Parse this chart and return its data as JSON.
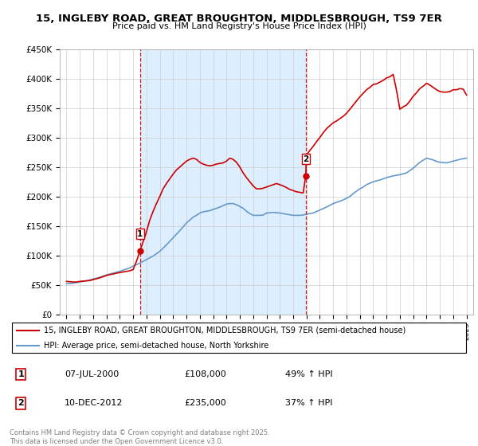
{
  "title": "15, INGLEBY ROAD, GREAT BROUGHTON, MIDDLESBROUGH, TS9 7ER",
  "subtitle": "Price paid vs. HM Land Registry's House Price Index (HPI)",
  "legend_line1": "15, INGLEBY ROAD, GREAT BROUGHTON, MIDDLESBROUGH, TS9 7ER (semi-detached house)",
  "legend_line2": "HPI: Average price, semi-detached house, North Yorkshire",
  "footnote": "Contains HM Land Registry data © Crown copyright and database right 2025.\nThis data is licensed under the Open Government Licence v3.0.",
  "transaction1_date": "07-JUL-2000",
  "transaction1_price": "£108,000",
  "transaction1_hpi": "49% ↑ HPI",
  "transaction2_date": "10-DEC-2012",
  "transaction2_price": "£235,000",
  "transaction2_hpi": "37% ↑ HPI",
  "marker1_x": 2000.52,
  "marker1_y": 108000,
  "marker2_x": 2012.94,
  "marker2_y": 235000,
  "vline1_x": 2000.52,
  "vline2_x": 2012.94,
  "ylim": [
    0,
    450000
  ],
  "xlim": [
    1994.5,
    2025.5
  ],
  "red_color": "#cc0000",
  "blue_color": "#6699cc",
  "shade_color": "#ddeeff",
  "vline_color": "#cc0000",
  "hpi_years": [
    1995,
    1995.25,
    1995.5,
    1995.75,
    1996,
    1996.25,
    1996.5,
    1996.75,
    1997,
    1997.25,
    1997.5,
    1997.75,
    1998,
    1998.25,
    1998.5,
    1998.75,
    1999,
    1999.25,
    1999.5,
    1999.75,
    2000,
    2000.25,
    2000.5,
    2000.75,
    2001,
    2001.25,
    2001.5,
    2001.75,
    2002,
    2002.25,
    2002.5,
    2002.75,
    2003,
    2003.25,
    2003.5,
    2003.75,
    2004,
    2004.25,
    2004.5,
    2004.75,
    2005,
    2005.25,
    2005.5,
    2005.75,
    2006,
    2006.25,
    2006.5,
    2006.75,
    2007,
    2007.25,
    2007.5,
    2007.75,
    2008,
    2008.25,
    2008.5,
    2008.75,
    2009,
    2009.25,
    2009.5,
    2009.75,
    2010,
    2010.25,
    2010.5,
    2010.75,
    2011,
    2011.25,
    2011.5,
    2011.75,
    2012,
    2012.25,
    2012.5,
    2012.75,
    2013,
    2013.25,
    2013.5,
    2013.75,
    2014,
    2014.25,
    2014.5,
    2014.75,
    2015,
    2015.25,
    2015.5,
    2015.75,
    2016,
    2016.25,
    2016.5,
    2016.75,
    2017,
    2017.25,
    2017.5,
    2017.75,
    2018,
    2018.25,
    2018.5,
    2018.75,
    2019,
    2019.25,
    2019.5,
    2019.75,
    2020,
    2020.25,
    2020.5,
    2020.75,
    2021,
    2021.25,
    2021.5,
    2021.75,
    2022,
    2022.25,
    2022.5,
    2022.75,
    2023,
    2023.25,
    2023.5,
    2023.75,
    2024,
    2024.25,
    2024.5,
    2024.75,
    2025
  ],
  "hpi_values": [
    52000,
    52500,
    53000,
    54000,
    55000,
    56000,
    57000,
    58500,
    60000,
    61500,
    63000,
    65000,
    67000,
    68500,
    70000,
    71500,
    73000,
    75000,
    77000,
    79000,
    82000,
    84500,
    87000,
    90000,
    93000,
    96000,
    99000,
    103000,
    107000,
    112500,
    118000,
    124000,
    130000,
    136000,
    142000,
    148500,
    155000,
    160000,
    165000,
    168000,
    172000,
    174000,
    175000,
    176000,
    178000,
    180000,
    182000,
    184500,
    187000,
    188000,
    188000,
    186000,
    183000,
    180000,
    175000,
    171000,
    168000,
    168000,
    168000,
    168500,
    172000,
    172500,
    173000,
    172500,
    172000,
    171000,
    170000,
    169000,
    168000,
    168000,
    168000,
    168500,
    170000,
    171000,
    172000,
    174500,
    177000,
    179500,
    182000,
    185000,
    188000,
    190000,
    192000,
    194000,
    197000,
    200000,
    205000,
    209000,
    213000,
    216000,
    220000,
    222500,
    225000,
    226500,
    228000,
    230000,
    232000,
    233500,
    235000,
    236000,
    237000,
    238500,
    240000,
    244000,
    248000,
    253000,
    258000,
    261500,
    265000,
    263500,
    262000,
    259500,
    258000,
    257500,
    257000,
    258500,
    260000,
    261500,
    263000,
    264000,
    265000
  ],
  "price_years": [
    1995,
    1995.25,
    1995.5,
    1995.75,
    1996,
    1996.25,
    1996.5,
    1996.75,
    1997,
    1997.25,
    1997.5,
    1997.75,
    1998,
    1998.25,
    1998.5,
    1998.75,
    1999,
    1999.25,
    1999.5,
    1999.75,
    2000,
    2000.25,
    2000.52,
    2001,
    2001.25,
    2001.5,
    2001.75,
    2002,
    2002.25,
    2002.5,
    2002.75,
    2003,
    2003.25,
    2003.5,
    2003.75,
    2004,
    2004.25,
    2004.5,
    2004.75,
    2005,
    2005.25,
    2005.5,
    2005.75,
    2006,
    2006.25,
    2006.5,
    2006.75,
    2007,
    2007.25,
    2007.5,
    2007.75,
    2008,
    2008.25,
    2008.5,
    2008.75,
    2009,
    2009.25,
    2009.5,
    2009.75,
    2010,
    2010.25,
    2010.5,
    2010.75,
    2011,
    2011.25,
    2011.5,
    2011.75,
    2012,
    2012.25,
    2012.5,
    2012.75,
    2012.94,
    2013,
    2013.25,
    2013.5,
    2013.75,
    2014,
    2014.25,
    2014.5,
    2014.75,
    2015,
    2015.25,
    2015.5,
    2015.75,
    2016,
    2016.25,
    2016.5,
    2016.75,
    2017,
    2017.25,
    2017.5,
    2017.75,
    2018,
    2018.25,
    2018.5,
    2018.75,
    2019,
    2019.25,
    2019.5,
    2019.75,
    2020,
    2020.25,
    2020.5,
    2020.75,
    2021,
    2021.25,
    2021.5,
    2021.75,
    2022,
    2022.25,
    2022.5,
    2022.75,
    2023,
    2023.25,
    2023.5,
    2023.75,
    2024,
    2024.25,
    2024.5,
    2024.75,
    2025
  ],
  "price_values": [
    56000,
    55500,
    55000,
    55000,
    56000,
    56500,
    57000,
    57500,
    59000,
    60500,
    62000,
    64000,
    66000,
    67500,
    68500,
    70000,
    71000,
    72000,
    73000,
    74000,
    76000,
    90000,
    108000,
    140000,
    160000,
    175000,
    188000,
    200000,
    213000,
    222000,
    230000,
    238000,
    245000,
    250000,
    255000,
    260000,
    263000,
    265000,
    263000,
    258000,
    255000,
    253000,
    252000,
    253000,
    255000,
    256000,
    257000,
    260000,
    265000,
    263000,
    258000,
    250000,
    240000,
    232000,
    225000,
    218000,
    213000,
    213000,
    214000,
    216000,
    218000,
    220000,
    222000,
    220000,
    218000,
    215000,
    212000,
    210000,
    208000,
    207000,
    206000,
    235000,
    270000,
    278000,
    285000,
    293000,
    300000,
    308000,
    315000,
    320000,
    325000,
    328000,
    332000,
    336000,
    341000,
    348000,
    355000,
    362000,
    369000,
    375000,
    381000,
    385000,
    390000,
    391000,
    394000,
    397000,
    401000,
    403000,
    407000,
    380000,
    348000,
    352000,
    355000,
    362000,
    370000,
    376000,
    383000,
    387000,
    392000,
    389000,
    385000,
    381000,
    378000,
    377000,
    377000,
    378000,
    381000,
    381000,
    383000,
    382000,
    372000
  ]
}
